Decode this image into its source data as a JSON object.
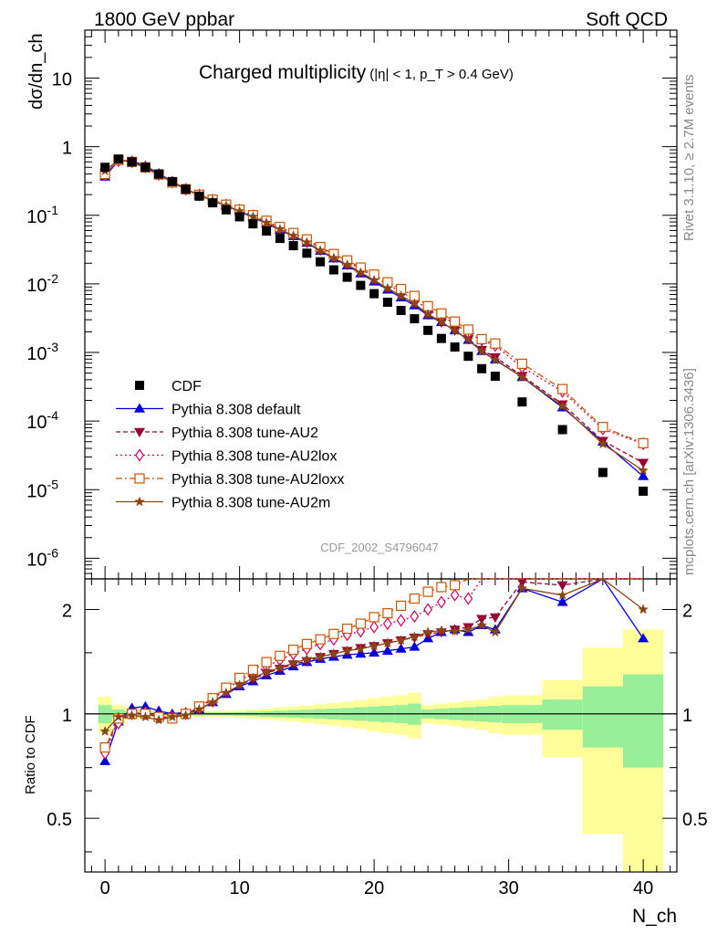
{
  "header": {
    "left": "1800 GeV ppbar",
    "right": "Soft QCD",
    "title_main": "Charged multiplicity",
    "title_cut": "(|η| < 1, p_T > 0.4 GeV)",
    "side_top": "Rivet 3.1.10, ≥ 2.7M events",
    "side_bottom": "mcplots.cern.ch [arXiv:1306.3436]",
    "watermark": "CDF_2002_S4796047"
  },
  "colors": {
    "data": "#000000",
    "default": "#0000dd",
    "au2": "#990033",
    "au2lox": "#cc0066",
    "au2loxx": "#cc5500",
    "au2m": "#8b4513",
    "band_green": "#99ee99",
    "band_yellow": "#ffff99"
  },
  "chart_data": {
    "type": "scatter",
    "xlabel": "N_ch",
    "ylabel_main": "dσ/dn_ch",
    "ylabel_ratio": "Ratio to CDF",
    "x_range": [
      -1.5,
      42.5
    ],
    "y_range_main": [
      5e-07,
      50
    ],
    "y_scale_main": "log",
    "y_range_ratio": [
      0.35,
      2.45
    ],
    "y_scale_ratio": "log",
    "x_ticks": [
      0,
      10,
      20,
      30,
      40
    ],
    "y_ticks_main": [
      {
        "v": 1e-06,
        "label": "10",
        "exp": "-6"
      },
      {
        "v": 1e-05,
        "label": "10",
        "exp": "-5"
      },
      {
        "v": 0.0001,
        "label": "10",
        "exp": "-4"
      },
      {
        "v": 0.001,
        "label": "10",
        "exp": "-3"
      },
      {
        "v": 0.01,
        "label": "10",
        "exp": "-2"
      },
      {
        "v": 0.1,
        "label": "10",
        "exp": "-1"
      },
      {
        "v": 1,
        "label": "1",
        "exp": ""
      },
      {
        "v": 10,
        "label": "10",
        "exp": ""
      }
    ],
    "y_ticks_ratio": [
      {
        "v": 0.5,
        "label": "0.5"
      },
      {
        "v": 1,
        "label": "1"
      },
      {
        "v": 2,
        "label": "2"
      }
    ],
    "legend_position": "bottom-left",
    "data": {
      "name": "CDF",
      "x": [
        0,
        1,
        2,
        3,
        4,
        5,
        6,
        7,
        8,
        9,
        10,
        11,
        12,
        13,
        14,
        15,
        16,
        17,
        18,
        19,
        20,
        21,
        22,
        23,
        24,
        25,
        26,
        27,
        28,
        29,
        31,
        34,
        37,
        40
      ],
      "y": [
        0.5,
        0.66,
        0.6,
        0.5,
        0.4,
        0.31,
        0.24,
        0.19,
        0.152,
        0.12,
        0.095,
        0.075,
        0.059,
        0.046,
        0.036,
        0.028,
        0.021,
        0.016,
        0.0125,
        0.0095,
        0.0072,
        0.0054,
        0.0041,
        0.0031,
        0.0021,
        0.0016,
        0.0012,
        0.00088,
        0.00058,
        0.00045,
        0.00019,
        7.5e-05,
        1.78e-05,
        9.5e-06
      ]
    },
    "mc_x": [
      0,
      1,
      2,
      3,
      4,
      5,
      6,
      7,
      8,
      9,
      10,
      11,
      12,
      13,
      14,
      15,
      16,
      17,
      18,
      19,
      20,
      21,
      22,
      23,
      24,
      25,
      26,
      27,
      28,
      29,
      31,
      34,
      37,
      40
    ],
    "series": [
      {
        "name": "Pythia 8.308 default",
        "key": "default",
        "ratio": [
          0.73,
          0.95,
          1.04,
          1.05,
          1.02,
          1.0,
          1.01,
          1.03,
          1.08,
          1.14,
          1.2,
          1.24,
          1.29,
          1.33,
          1.37,
          1.41,
          1.44,
          1.46,
          1.48,
          1.49,
          1.5,
          1.52,
          1.54,
          1.56,
          1.65,
          1.72,
          1.75,
          1.72,
          1.8,
          1.75,
          2.3,
          2.1,
          2.8,
          1.65
        ]
      },
      {
        "name": "Pythia 8.308 tune-AU2",
        "key": "au2",
        "ratio": [
          0.79,
          0.96,
          1.0,
          1.0,
          0.98,
          0.97,
          1.0,
          1.03,
          1.08,
          1.15,
          1.21,
          1.26,
          1.31,
          1.35,
          1.39,
          1.42,
          1.46,
          1.49,
          1.52,
          1.55,
          1.57,
          1.6,
          1.63,
          1.66,
          1.7,
          1.72,
          1.75,
          1.78,
          1.88,
          1.9,
          2.4,
          2.35,
          2.9,
          2.6
        ]
      },
      {
        "name": "Pythia 8.308 tune-AU2lox",
        "key": "au2lox",
        "ratio": [
          0.77,
          0.94,
          1.0,
          1.01,
          0.98,
          0.98,
          1.0,
          1.04,
          1.1,
          1.18,
          1.25,
          1.31,
          1.37,
          1.43,
          1.49,
          1.54,
          1.59,
          1.64,
          1.69,
          1.73,
          1.78,
          1.82,
          1.86,
          1.91,
          2.0,
          2.1,
          2.2,
          2.15,
          2.6,
          2.8,
          3.2,
          3.6,
          4.3,
          4.9
        ]
      },
      {
        "name": "Pythia 8.308 tune-AU2loxx",
        "key": "au2loxx",
        "ratio": [
          0.8,
          0.97,
          1.0,
          1.0,
          0.98,
          0.97,
          1.0,
          1.05,
          1.11,
          1.19,
          1.27,
          1.34,
          1.41,
          1.47,
          1.53,
          1.59,
          1.64,
          1.7,
          1.76,
          1.82,
          1.9,
          1.95,
          2.05,
          2.15,
          2.25,
          2.32,
          2.35,
          2.45,
          2.7,
          3.0,
          3.6,
          3.9,
          4.6,
          5.0
        ]
      },
      {
        "name": "Pythia 8.308 tune-AU2m",
        "key": "au2m",
        "ratio": [
          0.89,
          0.98,
          0.99,
          0.98,
          0.96,
          0.98,
          0.99,
          1.03,
          1.08,
          1.15,
          1.21,
          1.27,
          1.32,
          1.36,
          1.4,
          1.44,
          1.46,
          1.49,
          1.52,
          1.54,
          1.57,
          1.6,
          1.63,
          1.67,
          1.72,
          1.74,
          1.73,
          1.75,
          1.8,
          1.72,
          2.3,
          2.2,
          2.6,
          2.0
        ]
      }
    ],
    "bands": {
      "edges": [
        -0.5,
        0.5,
        1.5,
        2.5,
        3.5,
        4.5,
        5.5,
        6.5,
        7.5,
        8.5,
        9.5,
        10.5,
        11.5,
        12.5,
        13.5,
        14.5,
        15.5,
        16.5,
        17.5,
        18.5,
        19.5,
        20.5,
        21.5,
        22.5,
        23.5,
        24.5,
        25.5,
        26.5,
        27.5,
        28.5,
        29.5,
        32.5,
        35.5,
        38.5,
        41.5
      ],
      "green": [
        0.06,
        0.03,
        0.02,
        0.015,
        0.01,
        0.01,
        0.01,
        0.01,
        0.01,
        0.01,
        0.012,
        0.015,
        0.018,
        0.022,
        0.025,
        0.028,
        0.032,
        0.036,
        0.04,
        0.045,
        0.05,
        0.055,
        0.06,
        0.07,
        0.03,
        0.035,
        0.04,
        0.045,
        0.05,
        0.055,
        0.06,
        0.1,
        0.2,
        0.3
      ],
      "yellow": [
        0.12,
        0.06,
        0.04,
        0.03,
        0.02,
        0.02,
        0.02,
        0.02,
        0.02,
        0.02,
        0.025,
        0.03,
        0.036,
        0.044,
        0.05,
        0.058,
        0.066,
        0.075,
        0.085,
        0.095,
        0.11,
        0.12,
        0.13,
        0.15,
        0.06,
        0.07,
        0.08,
        0.09,
        0.1,
        0.12,
        0.13,
        0.25,
        0.55,
        0.75
      ]
    }
  }
}
